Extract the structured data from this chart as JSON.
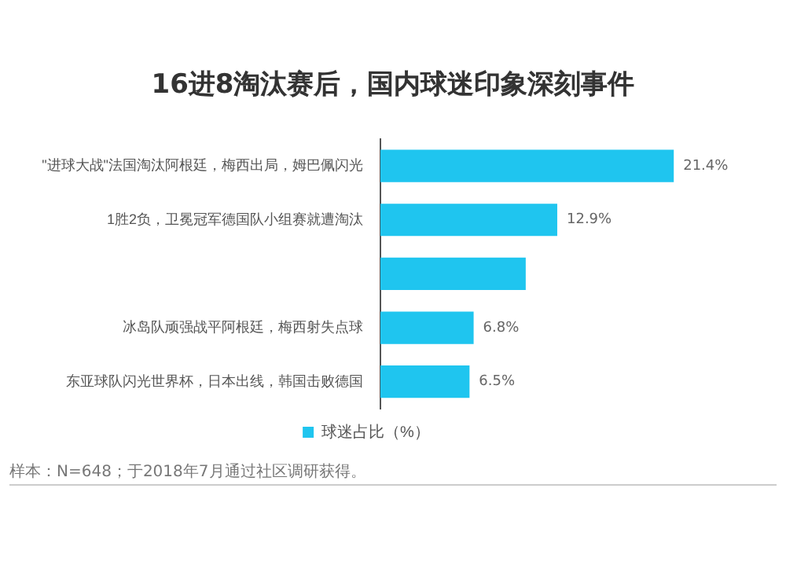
{
  "chart_data": {
    "type": "bar",
    "orientation": "horizontal",
    "title": "16进8淘汰赛后，国内球迷印象深刻事件",
    "categories": [
      "\"进球大战\"法国淘汰阿根廷，梅西出局，姆巴佩闪光",
      "1胜2负，卫冕冠军德国队小组赛就遭淘汰",
      null,
      "冰岛队顽强战平阿根廷，梅西射失点球",
      "东亚球队闪光世界杯，日本出线，韩国击败德国"
    ],
    "series": [
      {
        "name": "球迷占比（%）",
        "color": "#1fc5ef",
        "values": [
          21.4,
          12.9,
          10.6,
          6.8,
          6.5
        ],
        "value_labels": [
          "21.4%",
          "12.9%",
          null,
          "6.8%",
          "6.5%"
        ]
      }
    ],
    "legend": "bottom",
    "annotations": [
      "样本：N=648；于2018年7月通过社区调研获得。"
    ]
  }
}
